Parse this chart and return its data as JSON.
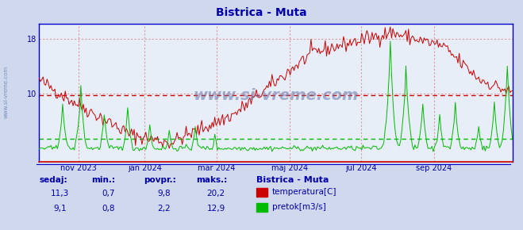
{
  "title": "Bistrica - Muta",
  "title_color": "#0000aa",
  "bg_color": "#d0d8ee",
  "plot_bg_color": "#e8eef8",
  "grid_color_red": "#dd9999",
  "grid_color_green": "#99cc99",
  "temp_color": "#cc0000",
  "flow_color": "#00bb00",
  "temp_avg_line": 9.8,
  "flow_avg_line": 2.2,
  "temp_max": 20.2,
  "flow_max": 12.9,
  "y_ticks": [
    10,
    18
  ],
  "x_tick_labels": [
    "nov 2023",
    "jan 2024",
    "mar 2024",
    "maj 2024",
    "jul 2024",
    "sep 2024"
  ],
  "x_tick_fracs": [
    0.083,
    0.222,
    0.374,
    0.527,
    0.679,
    0.832
  ],
  "watermark": "www.si-vreme.com",
  "watermark_color": "#6677aa",
  "sidebar_text": "www.si-vreme.com",
  "sidebar_color": "#6688bb",
  "bottom_headers": [
    "sedaj:",
    "min.:",
    "povpr.:",
    "maks.:"
  ],
  "bottom_label_color": "#0000aa",
  "bottom_row1": [
    "11,3",
    "0,7",
    "9,8",
    "20,2"
  ],
  "bottom_row2": [
    "9,1",
    "0,8",
    "2,2",
    "12,9"
  ],
  "legend_title": "Bistrica - Muta",
  "legend_entries": [
    "temperatura[C]",
    "pretok[m3/s]"
  ],
  "legend_colors": [
    "#cc0000",
    "#00bb00"
  ],
  "spine_color": "#0000cc",
  "spine_bottom_color": "#cc0000",
  "n_points": 365
}
